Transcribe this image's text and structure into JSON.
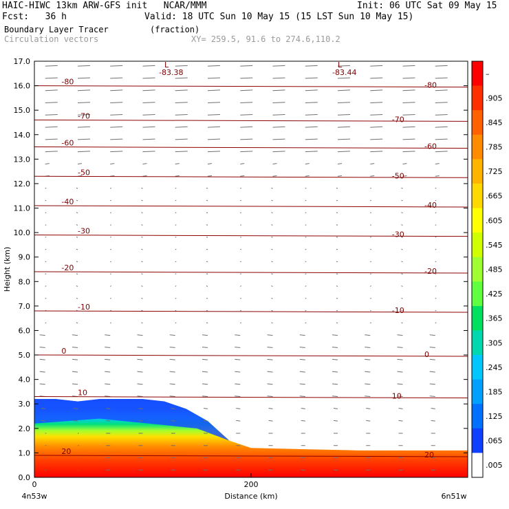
{
  "header": {
    "model_line": "HAIC-HIWC 13km ARW-GFS init   NCAR/MMM",
    "init_line": "Init: 06 UTC Sat 09 May 15",
    "fcst_line": "Fcst:   36 h",
    "valid_line": "Valid: 18 UTC Sun 10 May 15 (15 LST Sun 10 May 15)",
    "field1_name": "Boundary Layer Tracer",
    "field1_units": "(fraction)",
    "field2_name": "Circulation vectors",
    "xy_line": "XY= 259.5, 91.6 to 274.6,110.2"
  },
  "chart_data": {
    "type": "cross-section",
    "xlabel": "Distance (km)",
    "ylabel": "Height (km)",
    "xlim": [
      0,
      400
    ],
    "ylim": [
      0,
      17
    ],
    "x_ticks": [
      "0",
      "200"
    ],
    "y_ticks": [
      "0.0",
      "1.0",
      "2.0",
      "3.0",
      "4.0",
      "5.0",
      "6.0",
      "7.0",
      "8.0",
      "9.0",
      "10.0",
      "11.0",
      "12.0",
      "13.0",
      "14.0",
      "15.0",
      "16.0",
      "17.0"
    ],
    "left_endpoint_label": "4n53w",
    "right_endpoint_label": "6n51w",
    "grid": false,
    "temperature_contours": [
      {
        "label": "-80",
        "height_km": 16.0
      },
      {
        "label": "-70",
        "height_km": 14.6
      },
      {
        "label": "-60",
        "height_km": 13.5
      },
      {
        "label": "-50",
        "height_km": 12.3
      },
      {
        "label": "-40",
        "height_km": 11.1
      },
      {
        "label": "-30",
        "height_km": 9.9
      },
      {
        "label": "-20",
        "height_km": 8.4
      },
      {
        "label": "-10",
        "height_km": 6.8
      },
      {
        "label": "0",
        "height_km": 5.0
      },
      {
        "label": "10",
        "height_km": 3.3
      },
      {
        "label": "20",
        "height_km": 0.9
      }
    ],
    "minima": [
      {
        "mark": "L",
        "label": "-83.38",
        "x_km": 120
      },
      {
        "mark": "L",
        "label": "-83.44",
        "x_km": 280
      }
    ],
    "tracer_profile": {
      "x_km": [
        0,
        20,
        40,
        60,
        80,
        100,
        120,
        140,
        160,
        180,
        200,
        250,
        300,
        400
      ],
      "top_km": [
        3.2,
        3.2,
        3.1,
        3.2,
        3.2,
        3.2,
        3.1,
        2.8,
        2.3,
        1.5,
        1.2,
        1.15,
        1.1,
        1.1
      ]
    },
    "colorbar": {
      "labels": [
        "–",
        ".905",
        ".845",
        ".785",
        ".725",
        ".665",
        ".605",
        ".545",
        ".485",
        ".425",
        ".365",
        ".305",
        ".245",
        ".185",
        ".125",
        ".065",
        ".005"
      ],
      "colors": [
        "#ff0000",
        "#ff3000",
        "#ff6000",
        "#ff8c00",
        "#ffb400",
        "#ffd800",
        "#ffff00",
        "#d0ff00",
        "#a0ff30",
        "#60ff40",
        "#00e060",
        "#00d8b0",
        "#00c8ff",
        "#00a0ff",
        "#0070ff",
        "#1040ff",
        "#ffffff"
      ]
    }
  }
}
